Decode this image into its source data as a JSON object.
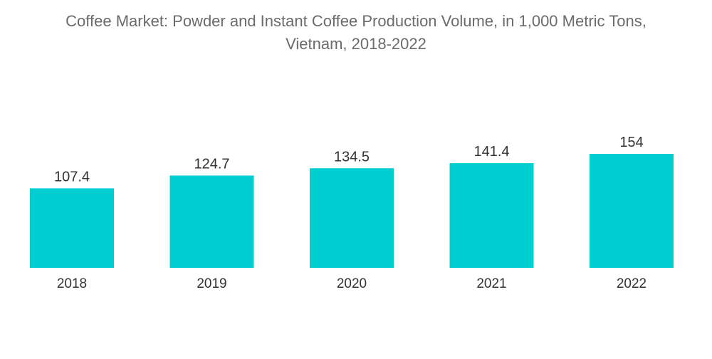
{
  "chart_data": {
    "type": "bar",
    "title_lines": [
      "Coffee Market: Powder and Instant Coffee Production Volume, in 1,000 Metric Tons,",
      "Vietnam, 2018-2022"
    ],
    "categories": [
      "2018",
      "2019",
      "2020",
      "2021",
      "2022"
    ],
    "values": [
      107.4,
      124.7,
      134.5,
      141.4,
      154
    ],
    "value_labels": [
      "107.4",
      "124.7",
      "134.5",
      "141.4",
      "154"
    ],
    "xlabel": "",
    "ylabel": "",
    "ylim": [
      0,
      154
    ],
    "grid": false,
    "legend": "none",
    "bar_color": "#00ced1"
  }
}
